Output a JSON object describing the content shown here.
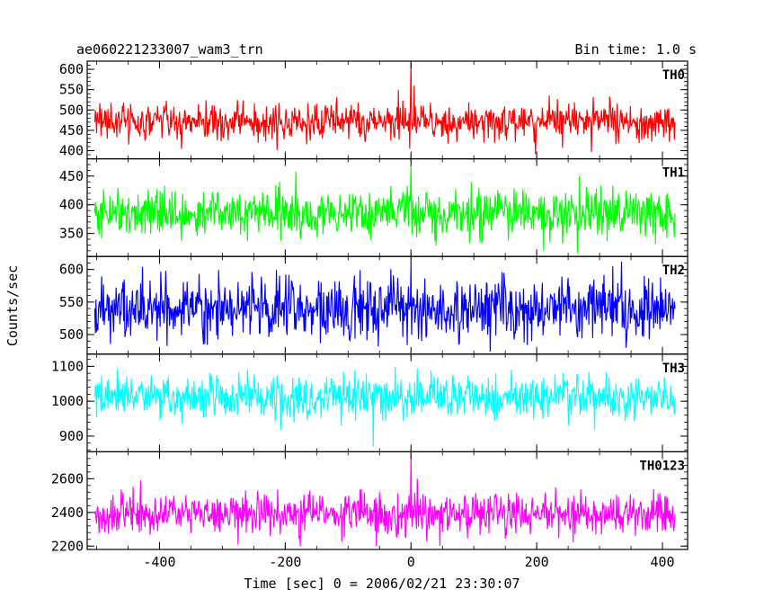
{
  "header": {
    "title": "ae060221233007_wam3_trn",
    "bin_time": "Bin time: 1.0 s"
  },
  "axes": {
    "xlabel": "Time [sec] 0 = 2006/02/21 23:30:07",
    "ylabel": "Counts/sec",
    "xlim": [
      -515,
      440
    ],
    "xticks": [
      -400,
      -200,
      0,
      200,
      400
    ]
  },
  "chart_data": {
    "type": "line",
    "title": "ae060221233007_wam3_trn",
    "xlabel": "Time [sec] 0 = 2006/02/21 23:30:07",
    "ylabel": "Counts/sec",
    "x_range": [
      -503,
      420
    ],
    "bin_time_s": 1.0,
    "grid": false,
    "panels": [
      {
        "name": "TH0",
        "color": "#ff0000",
        "ylim": [
          380,
          620
        ],
        "yticks": [
          400,
          450,
          500,
          550,
          600
        ],
        "baseline": 470,
        "noise_sd": 22,
        "key_points": [
          {
            "x": -503,
            "y": 470
          },
          {
            "x": -2,
            "y": 405
          },
          {
            "x": 0,
            "y": 615
          },
          {
            "x": 5,
            "y": 560
          },
          {
            "x": 20,
            "y": 510
          },
          {
            "x": 420,
            "y": 470
          }
        ]
      },
      {
        "name": "TH1",
        "color": "#00ff00",
        "ylim": [
          310,
          480
        ],
        "yticks": [
          350,
          400,
          450
        ],
        "baseline": 385,
        "noise_sd": 20,
        "key_points": [
          {
            "x": -503,
            "y": 385
          },
          {
            "x": 0,
            "y": 470
          },
          {
            "x": 420,
            "y": 385
          }
        ]
      },
      {
        "name": "TH2",
        "color": "#0000ff",
        "ylim": [
          470,
          620
        ],
        "yticks": [
          500,
          550,
          600
        ],
        "baseline": 540,
        "noise_sd": 24,
        "key_points": [
          {
            "x": -503,
            "y": 540
          },
          {
            "x": 0,
            "y": 610
          },
          {
            "x": 420,
            "y": 540
          }
        ]
      },
      {
        "name": "TH3",
        "color": "#00ffff",
        "ylim": [
          855,
          1135
        ],
        "yticks": [
          900,
          1000,
          1100
        ],
        "baseline": 1010,
        "noise_sd": 30,
        "key_points": [
          {
            "x": -503,
            "y": 1010
          },
          {
            "x": -60,
            "y": 870
          },
          {
            "x": 420,
            "y": 1010
          }
        ]
      },
      {
        "name": "TH0123",
        "color": "#ff00ff",
        "ylim": [
          2180,
          2760
        ],
        "yticks": [
          2200,
          2400,
          2600
        ],
        "baseline": 2390,
        "noise_sd": 60,
        "key_points": [
          {
            "x": -503,
            "y": 2390
          },
          {
            "x": -55,
            "y": 2200
          },
          {
            "x": 0,
            "y": 2740
          },
          {
            "x": 10,
            "y": 2600
          },
          {
            "x": 30,
            "y": 2480
          },
          {
            "x": 420,
            "y": 2390
          }
        ]
      }
    ]
  }
}
